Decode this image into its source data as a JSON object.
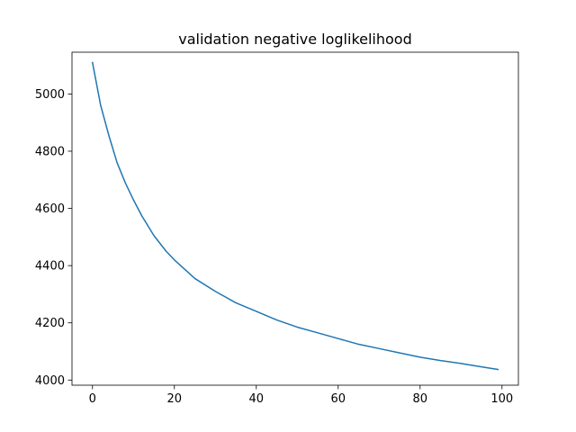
{
  "chart_data": {
    "type": "line",
    "title": "validation negative loglikelihood",
    "xlabel": "",
    "ylabel": "",
    "xlim": [
      -5,
      104
    ],
    "ylim": [
      3982,
      5146
    ],
    "xticks": [
      0,
      20,
      40,
      60,
      80,
      100
    ],
    "yticks": [
      4000,
      4200,
      4400,
      4600,
      4800,
      5000
    ],
    "grid": false,
    "legend": "none",
    "series": [
      {
        "color": "#1f77b4",
        "x": [
          0,
          2,
          4,
          6,
          8,
          10,
          12,
          15,
          18,
          20,
          25,
          30,
          35,
          40,
          45,
          50,
          55,
          60,
          65,
          70,
          75,
          80,
          85,
          90,
          95,
          99
        ],
        "y": [
          5110,
          4960,
          4855,
          4760,
          4690,
          4630,
          4575,
          4505,
          4450,
          4420,
          4355,
          4310,
          4270,
          4240,
          4210,
          4185,
          4165,
          4145,
          4125,
          4110,
          4095,
          4080,
          4068,
          4058,
          4046,
          4037
        ]
      }
    ]
  }
}
